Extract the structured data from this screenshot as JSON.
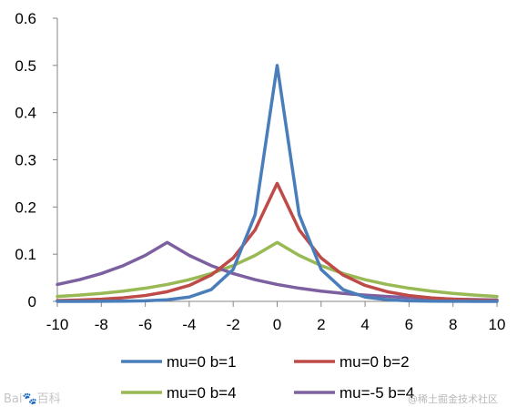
{
  "chart_data": {
    "type": "line",
    "title": "",
    "xlabel": "",
    "ylabel": "",
    "xlim": [
      -10,
      10
    ],
    "ylim": [
      0,
      0.6
    ],
    "x_ticks": [
      -10,
      -8,
      -6,
      -4,
      -2,
      0,
      2,
      4,
      6,
      8,
      10
    ],
    "y_ticks": [
      0,
      0.1,
      0.2,
      0.3,
      0.4,
      0.5,
      0.6
    ],
    "x_tick_labels": [
      "-10",
      "-8",
      "-6",
      "-4",
      "-2",
      "0",
      "2",
      "4",
      "6",
      "8",
      "10"
    ],
    "y_tick_labels": [
      "0",
      "0.1",
      "0.2",
      "0.3",
      "0.4",
      "0.5",
      "0.6"
    ],
    "grid": false,
    "legend_position": "bottom",
    "x": [
      -10,
      -9,
      -8,
      -7,
      -6,
      -5,
      -4,
      -3,
      -2,
      -1,
      0,
      1,
      2,
      3,
      4,
      5,
      6,
      7,
      8,
      9,
      10
    ],
    "series": [
      {
        "name": "mu=0 b=1",
        "color": "#4a7ebb",
        "values": [
          0.0,
          0.0001,
          0.0002,
          0.0005,
          0.0012,
          0.0034,
          0.0092,
          0.0249,
          0.0677,
          0.1839,
          0.5,
          0.1839,
          0.0677,
          0.0249,
          0.0092,
          0.0034,
          0.0012,
          0.0005,
          0.0002,
          0.0001,
          0.0
        ]
      },
      {
        "name": "mu=0 b=2",
        "color": "#be4b48",
        "values": [
          0.0017,
          0.0028,
          0.0046,
          0.0076,
          0.0124,
          0.0205,
          0.0338,
          0.0558,
          0.092,
          0.1516,
          0.25,
          0.1516,
          0.092,
          0.0558,
          0.0338,
          0.0205,
          0.0124,
          0.0076,
          0.0046,
          0.0028,
          0.0017
        ]
      },
      {
        "name": "mu=0 b=4",
        "color": "#98b954",
        "values": [
          0.0103,
          0.0132,
          0.0169,
          0.0217,
          0.0279,
          0.0358,
          0.046,
          0.059,
          0.0758,
          0.0974,
          0.125,
          0.0974,
          0.0758,
          0.059,
          0.046,
          0.0358,
          0.0279,
          0.0217,
          0.0169,
          0.0132,
          0.0103
        ]
      },
      {
        "name": "mu=-5 b=4",
        "color": "#7d60a0",
        "values": [
          0.0358,
          0.046,
          0.059,
          0.0758,
          0.0974,
          0.125,
          0.0974,
          0.0758,
          0.059,
          0.046,
          0.0358,
          0.0279,
          0.0217,
          0.0169,
          0.0132,
          0.0103,
          0.008,
          0.0062,
          0.0049,
          0.0038,
          0.0029
        ]
      }
    ]
  },
  "watermarks": {
    "left": "Bai🐾百科",
    "right": "@稀土掘金技术社区"
  }
}
